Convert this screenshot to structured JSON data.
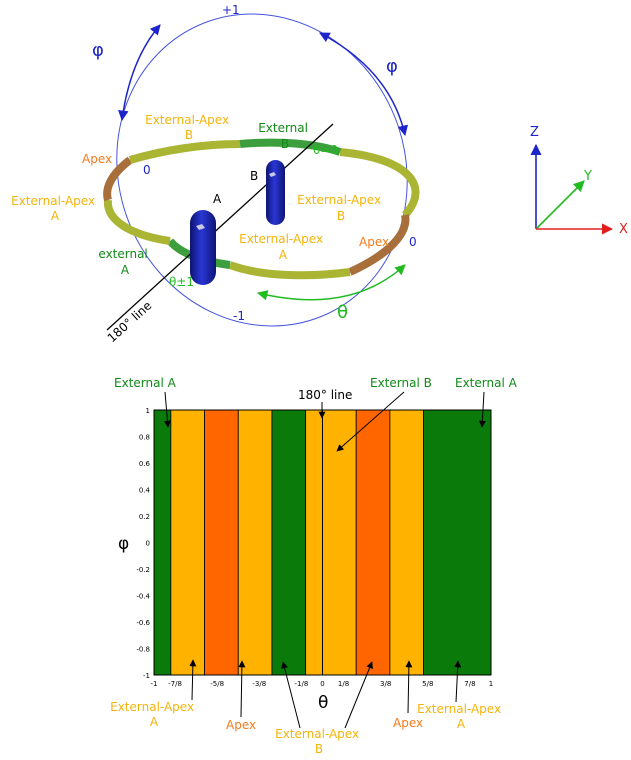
{
  "colors": {
    "green": "#0c7c10",
    "dark_green": "#118a18",
    "orange_text": "#f97a1e",
    "orange_fill": "#ff6600",
    "yellow_text": "#f5b40a",
    "yellow_fill": "#ffb300",
    "blue": "#1d24c9",
    "axis_red": "#e31d1d",
    "axis_green": "#22bb22"
  },
  "top_diagram": {
    "phi_labels": [
      "φ",
      "φ"
    ],
    "circle_labels": {
      "plus_one": "+1",
      "minus_one": "-1",
      "zero_left": "0",
      "zero_right": "0"
    },
    "ring_labels": {
      "external_apex_b_top": [
        "External-Apex",
        "B"
      ],
      "external_b": [
        "External",
        "B"
      ],
      "apex_left": "Apex",
      "external_apex_a_left": [
        "External-Apex",
        "A"
      ],
      "external_apex_b_right": [
        "External-Apex",
        "B"
      ],
      "external_apex_a_center": [
        "External-Apex",
        "A"
      ],
      "apex_right": "Apex",
      "external_a": [
        "external",
        "A"
      ]
    },
    "theta_zero": "θ=0",
    "theta_pm1": "θ±1",
    "theta_label": "θ",
    "cell_a": "A",
    "cell_b": "B",
    "line_180": "180° line"
  },
  "axes_legend": {
    "z": "Z",
    "y": "Y",
    "x": "X"
  },
  "chart_data": {
    "type": "bar",
    "xlabel": "θ",
    "ylabel": "φ",
    "xlim": [
      -1,
      1
    ],
    "ylim": [
      -1,
      1
    ],
    "x_tick_labels": [
      "-1",
      "-7/8",
      "-5/8",
      "-3/8",
      "-1/8",
      "0",
      "1/8",
      "3/8",
      "5/8",
      "7/8",
      "1"
    ],
    "y_tick_labels": [
      "1",
      "0.8",
      "0.6",
      "0.4",
      "0.2",
      "0",
      "-0.2",
      "-0.4",
      "-0.6",
      "-0.8",
      "-1"
    ],
    "regions": [
      {
        "name": "External A",
        "from": -1,
        "to": -0.9,
        "color": "#0a7a0a"
      },
      {
        "name": "External-Apex A",
        "from": -0.9,
        "to": -0.7,
        "color": "#ffb300"
      },
      {
        "name": "Apex",
        "from": -0.7,
        "to": -0.5,
        "color": "#ff6600"
      },
      {
        "name": "External-Apex B",
        "from": -0.5,
        "to": -0.3,
        "color": "#ffb300"
      },
      {
        "name": "External B",
        "from": -0.3,
        "to": -0.1,
        "color": "#0a7a0a"
      },
      {
        "name": "External-Apex B",
        "from": -0.1,
        "to": 0.2,
        "color": "#ffb300"
      },
      {
        "name": "Apex",
        "from": 0.2,
        "to": 0.4,
        "color": "#ff6600"
      },
      {
        "name": "External-Apex A",
        "from": 0.4,
        "to": 0.6,
        "color": "#ffb300"
      },
      {
        "name": "External A",
        "from": 0.6,
        "to": 1,
        "color": "#0a7a0a"
      }
    ],
    "line_180_at": 0,
    "annotations": {
      "top": [
        "External A",
        "180° line",
        "External B",
        "External A"
      ],
      "bottom": [
        {
          "lines": [
            "External-Apex",
            "A"
          ],
          "color": "#f5b40a"
        },
        {
          "lines": [
            "Apex"
          ],
          "color": "#f97a1e"
        },
        {
          "lines": [
            "External-Apex",
            "B"
          ],
          "color": "#f5b40a"
        },
        {
          "lines": [
            "Apex"
          ],
          "color": "#f97a1e"
        },
        {
          "lines": [
            "External-Apex",
            "A"
          ],
          "color": "#f5b40a"
        }
      ]
    }
  }
}
